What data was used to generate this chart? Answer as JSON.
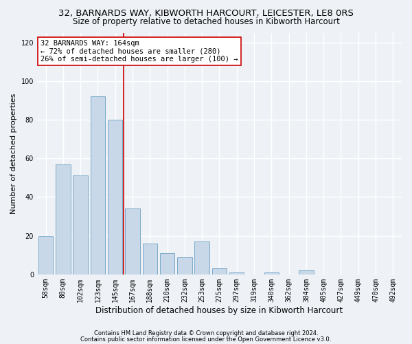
{
  "title1": "32, BARNARDS WAY, KIBWORTH HARCOURT, LEICESTER, LE8 0RS",
  "title2": "Size of property relative to detached houses in Kibworth Harcourt",
  "xlabel": "Distribution of detached houses by size in Kibworth Harcourt",
  "ylabel": "Number of detached properties",
  "categories": [
    "58sqm",
    "80sqm",
    "102sqm",
    "123sqm",
    "145sqm",
    "167sqm",
    "188sqm",
    "210sqm",
    "232sqm",
    "253sqm",
    "275sqm",
    "297sqm",
    "319sqm",
    "340sqm",
    "362sqm",
    "384sqm",
    "405sqm",
    "427sqm",
    "449sqm",
    "470sqm",
    "492sqm"
  ],
  "values": [
    20,
    57,
    51,
    92,
    80,
    34,
    16,
    11,
    9,
    17,
    3,
    1,
    0,
    1,
    0,
    2,
    0,
    0,
    0,
    0,
    0
  ],
  "bar_color": "#c8d8e8",
  "bar_edge_color": "#7aaac8",
  "vline_color": "#cc0000",
  "vline_x_index": 4,
  "annotation_text": "32 BARNARDS WAY: 164sqm\n← 72% of detached houses are smaller (280)\n26% of semi-detached houses are larger (100) →",
  "annotation_box_color": "white",
  "annotation_box_edge": "#cc0000",
  "ylim": [
    0,
    125
  ],
  "yticks": [
    0,
    20,
    40,
    60,
    80,
    100,
    120
  ],
  "footer1": "Contains HM Land Registry data © Crown copyright and database right 2024.",
  "footer2": "Contains public sector information licensed under the Open Government Licence v3.0.",
  "bg_color": "#eef2f7",
  "grid_color": "#ffffff",
  "title_fontsize": 9.5,
  "subtitle_fontsize": 8.5,
  "ylabel_fontsize": 8,
  "xlabel_fontsize": 8.5,
  "tick_fontsize": 7,
  "annot_fontsize": 7.5,
  "footer_fontsize": 6
}
